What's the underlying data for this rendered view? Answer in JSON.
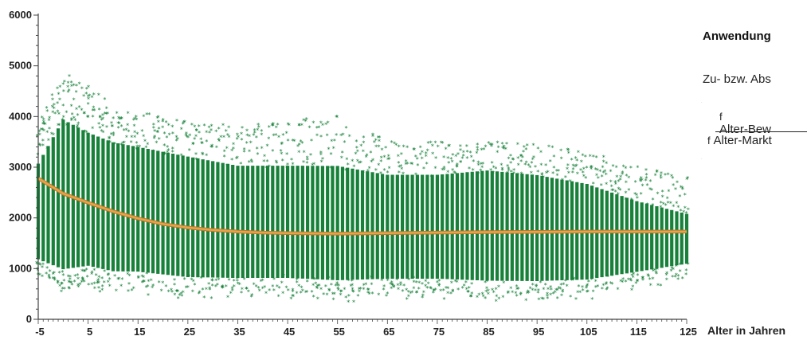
{
  "chart_data": {
    "type": "scatter",
    "title": "",
    "xlabel": "Alter in Jahren",
    "ylabel": "",
    "xlim": [
      -5,
      125
    ],
    "ylim": [
      0,
      6000
    ],
    "x_ticks": [
      -5,
      5,
      15,
      25,
      35,
      45,
      55,
      65,
      75,
      85,
      95,
      105,
      115,
      125
    ],
    "y_ticks": [
      0,
      1000,
      2000,
      3000,
      4000,
      5000,
      6000
    ],
    "grid": false,
    "legend": "none",
    "marker": "asterisk",
    "scatter_summary": {
      "x": [
        -5,
        0,
        5,
        10,
        15,
        25,
        35,
        45,
        55,
        65,
        75,
        85,
        95,
        105,
        115,
        125
      ],
      "band_low": [
        1000,
        700,
        800,
        700,
        700,
        600,
        600,
        600,
        550,
        600,
        600,
        550,
        550,
        600,
        800,
        1000
      ],
      "band_high": [
        3300,
        4300,
        4000,
        3800,
        3700,
        3500,
        3300,
        3300,
        3300,
        3100,
        3100,
        3200,
        3100,
        2900,
        2500,
        2200
      ],
      "outlier_max": [
        3800,
        4850,
        4600,
        4200,
        4100,
        3900,
        3800,
        3900,
        4050,
        3500,
        3500,
        3500,
        3450,
        3300,
        3000,
        2800
      ]
    },
    "series": [
      {
        "type": "line",
        "x": [
          -5,
          0,
          5,
          10,
          15,
          20,
          25,
          30,
          35,
          40,
          45,
          55,
          65,
          75,
          85,
          95,
          105,
          115,
          125
        ],
        "y": [
          2780,
          2480,
          2300,
          2130,
          1990,
          1880,
          1810,
          1760,
          1730,
          1710,
          1700,
          1690,
          1700,
          1710,
          1720,
          1725,
          1730,
          1730,
          1730
        ]
      }
    ],
    "colors": {
      "points": "#17813a",
      "line": "#e9a24a",
      "line_edge": "#b87a2a"
    }
  },
  "panel": {
    "title": "Anwendung",
    "text": "Zu- bzw. Abs",
    "formula_top_prefix": "f",
    "formula_top_sub": "Alter-Bew",
    "formula_bottom_prefix": "f",
    "formula_bottom_sub": "Alter-Markt"
  }
}
